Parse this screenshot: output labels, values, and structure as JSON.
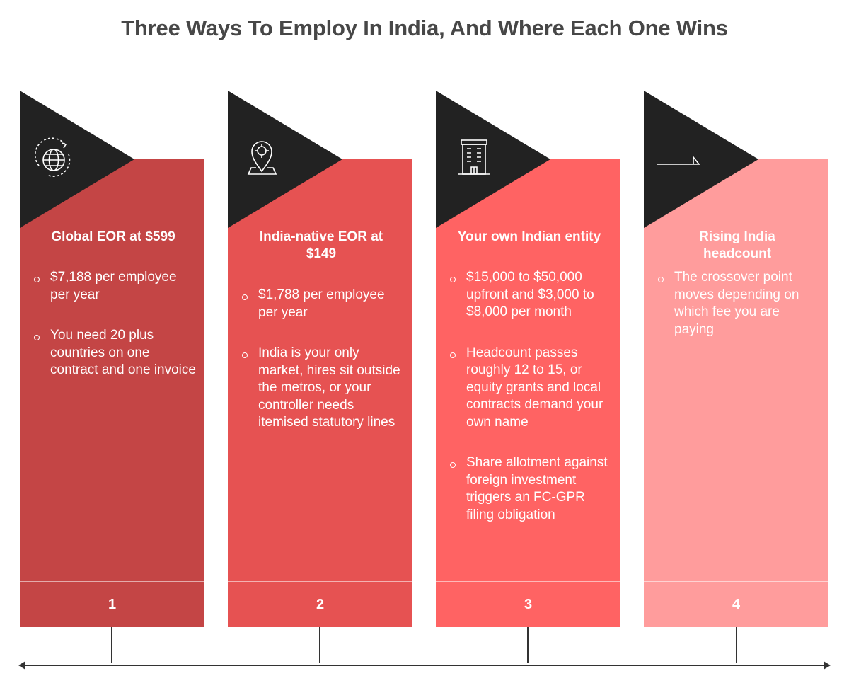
{
  "title": "Three Ways To Employ In India, And Where Each One Wins",
  "colors": {
    "col1": "#c44545",
    "col2": "#e65252",
    "col3": "#ff6363",
    "col4": "#ff9c9c",
    "triangle": "#222222"
  },
  "columns": [
    {
      "heading": "Global EOR at $599",
      "icon": "globe-icon",
      "bullets": [
        "$7,188 per employee per year",
        "You need 20 plus countries on one contract and one invoice"
      ],
      "number": "1"
    },
    {
      "heading": "India-native EOR at $149",
      "icon": "map-pin-icon",
      "bullets": [
        "$1,788 per employee per year",
        "India is your only market, hires sit outside the metros, or your controller needs itemised statutory lines"
      ],
      "number": "2"
    },
    {
      "heading": "Your own Indian entity",
      "icon": "building-icon",
      "bullets": [
        "$15,000 to $50,000 upfront and $3,000 to $8,000 per month",
        "Headcount passes roughly 12 to 15, or equity grants and local contracts demand your own name",
        "Share allotment against foreign investment triggers an FC-GPR filing obligation"
      ],
      "number": "3"
    },
    {
      "heading": "Rising India headcount",
      "icon": "ramp-icon",
      "bullets": [
        "The crossover point moves depending on which fee you are paying"
      ],
      "number": "4"
    }
  ]
}
